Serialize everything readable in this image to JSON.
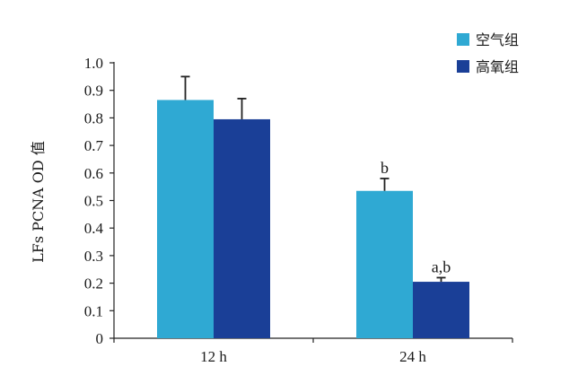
{
  "chart_data": {
    "type": "bar",
    "title": "",
    "xlabel": "",
    "ylabel": "LFs PCNA OD 值",
    "ylim": [
      0,
      1.0
    ],
    "yticks": [
      "0",
      "0.1",
      "0.2",
      "0.3",
      "0.4",
      "0.5",
      "0.6",
      "0.7",
      "0.8",
      "0.9",
      "1.0"
    ],
    "categories": [
      "12 h",
      "24 h"
    ],
    "series": [
      {
        "name": "空气组",
        "color": "#2fa9d3",
        "values": [
          0.865,
          0.535
        ],
        "errors": [
          0.085,
          0.045
        ],
        "labels": [
          "",
          "b"
        ]
      },
      {
        "name": "高氧组",
        "color": "#1a3f97",
        "values": [
          0.795,
          0.205
        ],
        "errors": [
          0.075,
          0.015
        ],
        "labels": [
          "",
          "a,b"
        ]
      }
    ],
    "grid": false,
    "legend_position": "top-right"
  }
}
